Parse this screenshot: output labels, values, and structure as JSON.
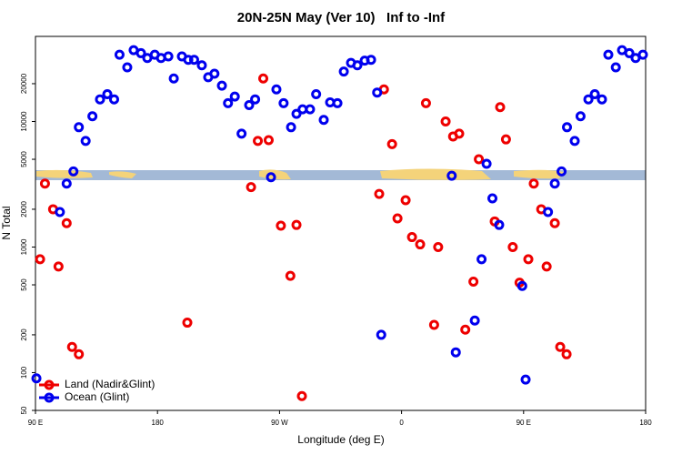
{
  "chart_data": {
    "type": "scatter",
    "title": "20N-25N May (Ver 10)   Inf to -Inf",
    "x_label": "Longitude (deg E)",
    "y_label": "N Total",
    "xlim": [
      90,
      540
    ],
    "ylim": [
      50,
      47600
    ],
    "ylog": true,
    "legend": "bottom-left",
    "xticks": [
      {
        "value": 90,
        "label": "90 E"
      },
      {
        "value": 180,
        "label": "180"
      },
      {
        "value": 270,
        "label": "90 W"
      },
      {
        "value": 360,
        "label": "0"
      },
      {
        "value": 450,
        "label": "90 E"
      },
      {
        "value": 540,
        "label": "180"
      }
    ],
    "yticks": [
      50,
      100,
      200,
      500,
      1000,
      2000,
      5000,
      10000,
      20000
    ],
    "series": [
      {
        "name": "Land (Nadir&Glint)",
        "color": "#ee0000",
        "x": [
          93.4,
          97,
          103,
          107,
          113,
          117,
          122,
          202,
          249,
          254,
          258,
          262,
          271,
          278,
          282.5,
          286.5,
          343.5,
          347,
          353,
          357,
          363,
          367.7,
          373.7,
          378,
          384,
          387,
          392.5,
          398,
          402.5,
          407,
          413,
          417,
          428.7,
          432.7,
          437,
          442,
          447,
          453.5,
          457.5,
          463,
          467,
          473,
          477,
          481.7
        ],
        "values": [
          800,
          3200,
          2000,
          700,
          1550,
          160,
          140,
          250,
          3000,
          7000,
          22000,
          7100,
          1480,
          590,
          1500,
          65,
          2650,
          18000,
          6600,
          1690,
          2360,
          1200,
          1050,
          14000,
          240,
          1000,
          10000,
          7600,
          8000,
          220,
          530,
          5000,
          1600,
          13000,
          7200,
          1000,
          520,
          800,
          3200,
          2000,
          700,
          1550,
          160,
          140
        ]
      },
      {
        "name": "Ocean (Glint)",
        "color": "#0000ee",
        "x": [
          90.7,
          113,
          108,
          118,
          122,
          127,
          132,
          137.6,
          143,
          148,
          152,
          157.7,
          162.4,
          167.8,
          172.5,
          178,
          182.6,
          188,
          192,
          198,
          202.7,
          207,
          212.7,
          217.4,
          222,
          227.5,
          232,
          237,
          242,
          247.6,
          252,
          263.7,
          267.7,
          273,
          278.5,
          282.5,
          287,
          292.5,
          297,
          302.6,
          307.3,
          312.7,
          317.4,
          322.7,
          327.4,
          332.8,
          337.5,
          342,
          345,
          397,
          400,
          414,
          419,
          422.7,
          427,
          432,
          449,
          451.5,
          468,
          473,
          478,
          482,
          487.7,
          492,
          497.8,
          502.5,
          507.8,
          512.5,
          518,
          522.6,
          528,
          532.6,
          538
        ],
        "values": [
          90,
          3200,
          1900,
          4000,
          9000,
          7000,
          11000,
          15000,
          16500,
          15000,
          34000,
          27000,
          37000,
          35000,
          32000,
          34000,
          32000,
          33000,
          22000,
          33000,
          31000,
          31000,
          28000,
          22500,
          24000,
          19300,
          14000,
          15800,
          8000,
          13500,
          15000,
          3600,
          18000,
          14000,
          9000,
          11500,
          12500,
          12500,
          16500,
          10300,
          14200,
          14000,
          25000,
          29300,
          28000,
          30500,
          31000,
          17000,
          200,
          3700,
          145,
          260,
          800,
          4600,
          2440,
          1500,
          490,
          88,
          1900,
          3200,
          4000,
          9000,
          7000,
          11000,
          15000,
          16500,
          15000,
          34000,
          27000,
          37000,
          35000,
          32000,
          34000
        ]
      }
    ]
  }
}
